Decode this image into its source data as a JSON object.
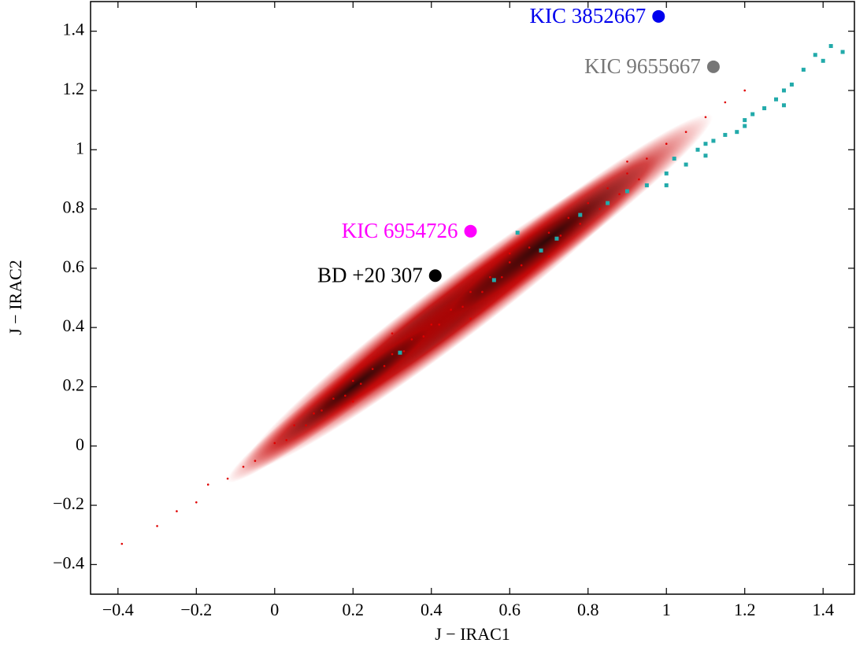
{
  "chart_data": {
    "type": "scatter",
    "xlabel": "J − IRAC1",
    "ylabel": "J − IRAC2",
    "xlim": [
      -0.47,
      1.48
    ],
    "ylim": [
      -0.5,
      1.5
    ],
    "xticks": [
      {
        "value": -0.4,
        "label": "−0.4"
      },
      {
        "value": -0.2,
        "label": "−0.2"
      },
      0,
      0.2,
      0.4,
      0.6,
      0.8,
      1.0,
      1.2,
      1.4
    ],
    "yticks": [
      {
        "value": -0.4,
        "label": "−0.4"
      },
      {
        "value": -0.2,
        "label": "−0.2"
      },
      0,
      0.2,
      0.4,
      0.6,
      0.8,
      1.0,
      1.2,
      1.4
    ],
    "series": [
      {
        "color": "#e00000",
        "marker": "dot",
        "x": [
          -0.39,
          -0.3,
          -0.25,
          -0.2,
          -0.17,
          -0.12,
          -0.08,
          -0.05,
          0,
          0.03,
          0.05,
          0.08,
          0.1,
          0.12,
          0.15,
          0.18,
          0.2,
          0.22,
          0.25,
          0.28,
          0.3,
          0.33,
          0.35,
          0.38,
          0.4,
          0.42,
          0.45,
          0.48,
          0.5,
          0.53,
          0.55,
          0.58,
          0.6,
          0.63,
          0.65,
          0.68,
          0.7,
          0.73,
          0.75,
          0.78,
          0.8,
          0.83,
          0.85,
          0.88,
          0.9,
          0.93,
          0.95,
          1.0,
          1.05,
          1.1,
          1.15,
          1.2,
          0.3,
          0.5,
          0.7,
          0.9,
          0.2,
          0.6
        ],
        "y": [
          -0.33,
          -0.27,
          -0.22,
          -0.19,
          -0.13,
          -0.11,
          -0.07,
          -0.05,
          0.01,
          0.02,
          0.07,
          0.07,
          0.11,
          0.12,
          0.16,
          0.17,
          0.22,
          0.21,
          0.26,
          0.27,
          0.31,
          0.32,
          0.36,
          0.37,
          0.41,
          0.41,
          0.46,
          0.47,
          0.52,
          0.52,
          0.57,
          0.57,
          0.62,
          0.61,
          0.67,
          0.66,
          0.72,
          0.71,
          0.77,
          0.75,
          0.82,
          0.8,
          0.87,
          0.85,
          0.92,
          0.9,
          0.97,
          1.02,
          1.06,
          1.11,
          1.16,
          1.2,
          0.38,
          0.43,
          0.64,
          0.96,
          0.15,
          0.65
        ]
      },
      {
        "color": "#22aaaa",
        "marker": "square",
        "x": [
          0.32,
          0.56,
          0.62,
          0.68,
          0.72,
          0.78,
          0.85,
          0.9,
          0.95,
          1.0,
          1.02,
          1.05,
          1.08,
          1.1,
          1.12,
          1.15,
          1.18,
          1.2,
          1.22,
          1.25,
          1.28,
          1.3,
          1.32,
          1.35,
          1.38,
          1.4,
          1.42,
          1.45,
          1.0,
          1.1,
          1.2,
          1.3
        ],
        "y": [
          0.315,
          0.56,
          0.72,
          0.66,
          0.7,
          0.78,
          0.82,
          0.86,
          0.88,
          0.92,
          0.97,
          0.95,
          1.0,
          0.98,
          1.03,
          1.05,
          1.06,
          1.1,
          1.12,
          1.14,
          1.17,
          1.2,
          1.22,
          1.27,
          1.32,
          1.3,
          1.35,
          1.33,
          0.88,
          1.02,
          1.08,
          1.15
        ]
      },
      {
        "name": "KIC 3852667",
        "color": "#0000ee",
        "marker": "big",
        "x": [
          0.98
        ],
        "y": [
          1.45
        ]
      },
      {
        "name": "KIC 9655667",
        "color": "#777777",
        "marker": "big",
        "x": [
          1.12
        ],
        "y": [
          1.28
        ]
      },
      {
        "name": "KIC 6954726",
        "color": "#ff00ff",
        "marker": "big",
        "x": [
          0.5
        ],
        "y": [
          0.725
        ]
      },
      {
        "name": "BD +20 307",
        "color": "#000000",
        "marker": "big",
        "x": [
          0.41
        ],
        "y": [
          0.575
        ]
      }
    ]
  }
}
